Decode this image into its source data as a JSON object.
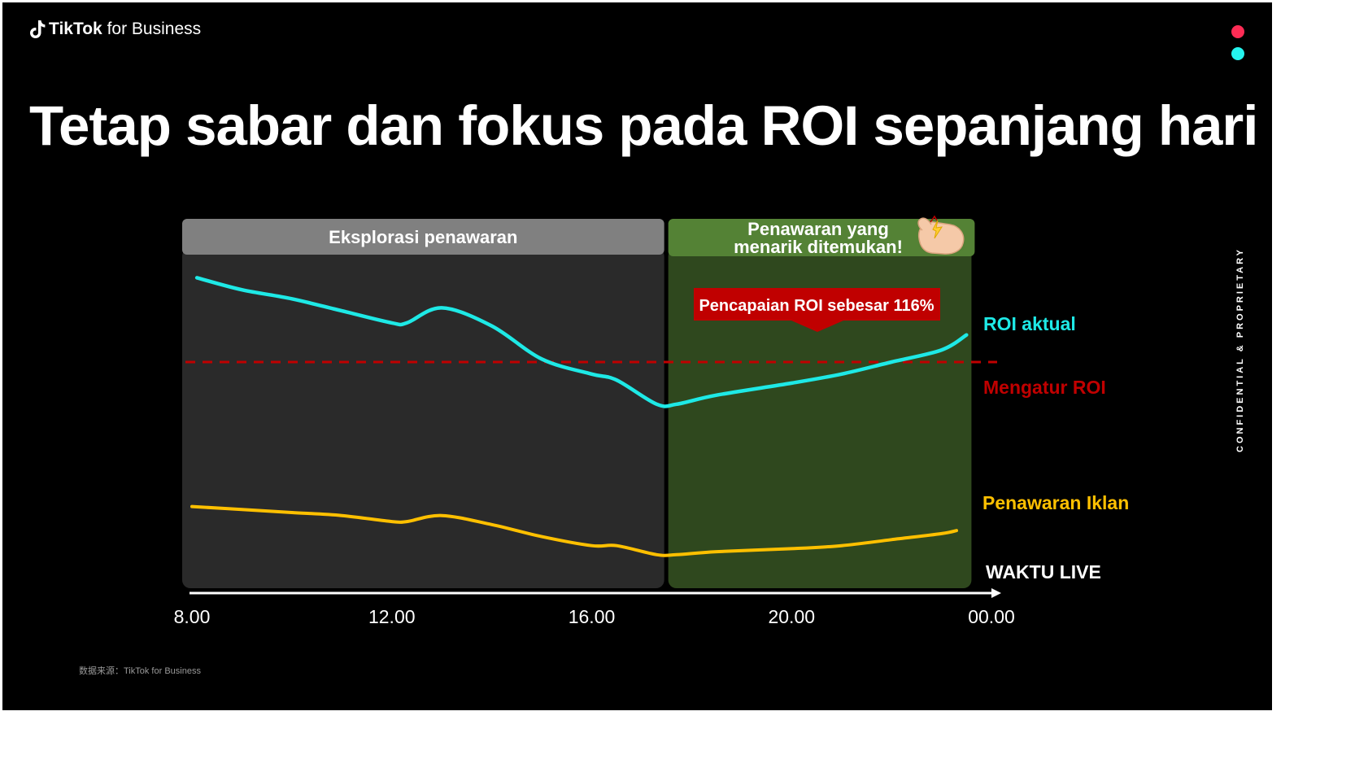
{
  "brand": {
    "name_bold": "TikTok",
    "name_rest": " for Business"
  },
  "accent_colors": {
    "dot_top": "#FE2C55",
    "dot_bottom": "#25F4EE"
  },
  "title": "Tetap sabar dan fokus pada ROI sepanjang hari",
  "confidential_text": "CONFIDENTIAL & PROPRIETARY",
  "source_note": "数据来源：TikTok for Business",
  "chart_data": {
    "type": "line",
    "title": "",
    "x_axis_title": "WAKTU LIVE",
    "x_ticks": [
      "8.00",
      "12.00",
      "16.00",
      "20.00",
      "00.00"
    ],
    "phases": [
      {
        "label": "Eksplorasi penawaran",
        "x_range": [
          8.0,
          17.5
        ],
        "header_color": "#808080",
        "body_color": "#2a2a2a"
      },
      {
        "label_lines": [
          "Penawaran yang",
          "menarik ditemukan!"
        ],
        "x_range": [
          17.5,
          23.6
        ],
        "header_color": "#548235",
        "body_color": "#2f481e",
        "icon": "hand-emoji-icon"
      }
    ],
    "callout": {
      "text": "Pencapaian ROI sebesar 116%",
      "color": "#c00000"
    },
    "reference_line": {
      "name": "Mengatur ROI",
      "y": 100,
      "color": "#c00000",
      "style": "dashed"
    },
    "series": [
      {
        "name": "ROI aktual",
        "color": "#1ee9e6",
        "x": [
          8.1,
          9.0,
          10.0,
          11.0,
          12.0,
          12.3,
          13.0,
          14.0,
          15.0,
          16.0,
          16.5,
          17.3,
          17.7,
          18.5,
          20.0,
          21.0,
          22.0,
          23.0,
          23.5
        ],
        "y": [
          128,
          124,
          121,
          117,
          113,
          113,
          118,
          112,
          101,
          96,
          94,
          86,
          86,
          89,
          93,
          96,
          100,
          104,
          109
        ]
      },
      {
        "name": "Penawaran Iklan",
        "color": "#ffc000",
        "x": [
          8.0,
          9.0,
          10.0,
          11.0,
          12.0,
          12.3,
          13.0,
          14.0,
          15.0,
          16.0,
          16.5,
          17.3,
          17.7,
          18.5,
          20.0,
          21.0,
          22.0,
          23.0,
          23.3
        ],
        "y": [
          52,
          51,
          50,
          49,
          47,
          47,
          49,
          46,
          42,
          39,
          39,
          36,
          36,
          37,
          38,
          39,
          41,
          43,
          44
        ]
      }
    ]
  }
}
